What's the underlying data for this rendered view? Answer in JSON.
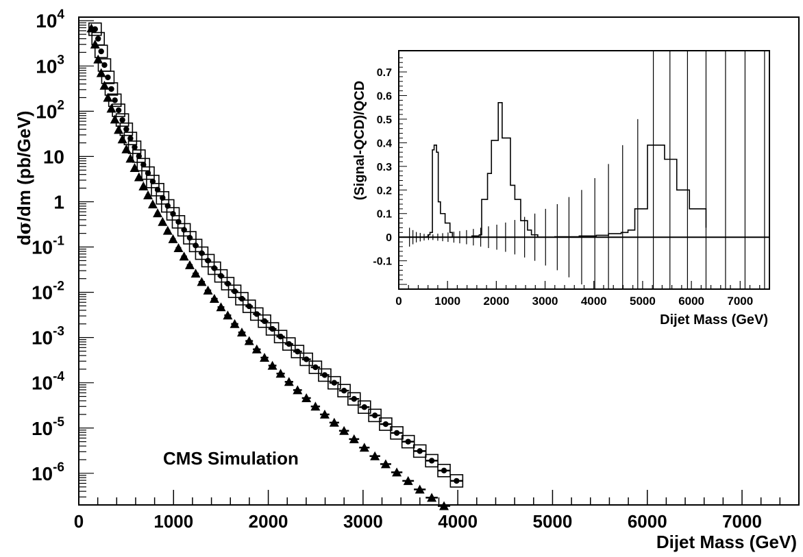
{
  "chart_data": [
    {
      "type": "scatter",
      "xlabel": "Dijet Mass (GeV)",
      "ylabel_prefix": "d",
      "ylabel_sigma": "σ",
      "ylabel_rest": "/dm (pb/GeV)",
      "xlim": [
        0,
        7600
      ],
      "ylim": [
        2e-07,
        12000.0
      ],
      "yscale": "log",
      "xticks": [
        0,
        1000,
        2000,
        3000,
        4000,
        5000,
        6000,
        7000
      ],
      "yticks": [
        {
          "base": "10",
          "exp": "4",
          "v": 10000.0
        },
        {
          "base": "10",
          "exp": "3",
          "v": 1000.0
        },
        {
          "base": "10",
          "exp": "2",
          "v": 100.0
        },
        {
          "base": "10",
          "exp": "",
          "v": 10
        },
        {
          "base": "1",
          "exp": "",
          "v": 1
        },
        {
          "base": "10",
          "exp": "-1",
          "v": 0.1
        },
        {
          "base": "10",
          "exp": "-2",
          "v": 0.01
        },
        {
          "base": "10",
          "exp": "-3",
          "v": 0.001
        },
        {
          "base": "10",
          "exp": "-4",
          "v": 0.0001
        },
        {
          "base": "10",
          "exp": "-5",
          "v": 1e-05
        },
        {
          "base": "10",
          "exp": "-6",
          "v": 1e-06
        }
      ],
      "annotation": "CMS Simulation",
      "bin_edges": [
        110,
        156,
        188,
        220,
        253,
        289,
        325,
        362,
        400,
        440,
        480,
        523,
        567,
        612,
        658,
        706,
        755,
        806,
        858,
        911,
        966,
        1023,
        1081,
        1141,
        1202,
        1265,
        1330,
        1397,
        1465,
        1536,
        1608,
        1683,
        1759,
        1838,
        1919,
        2001,
        2086,
        2174,
        2263,
        2355,
        2449,
        2546,
        2645,
        2747,
        2852,
        2959,
        3069,
        3181,
        3297,
        3415,
        3537,
        3661,
        3789,
        3920,
        4054,
        4192,
        4333,
        4478,
        4627,
        4779,
        4936,
        5096,
        5261,
        5430,
        5604,
        5782,
        5964,
        6152,
        6344,
        6542,
        6744,
        6953,
        7166,
        7386,
        7611
      ],
      "series": [
        {
          "marker": "triangle",
          "values": [
            6800,
            3000,
            1400,
            700,
            370,
            200,
            115,
            66,
            39,
            24,
            14.5,
            9,
            5.6,
            3.5,
            2.2,
            1.4,
            0.88,
            0.56,
            0.36,
            0.23,
            0.15,
            0.095,
            0.062,
            0.04,
            0.026,
            0.017,
            0.011,
            0.0072,
            0.0047,
            0.0031,
            0.002,
            0.0013,
            0.00084,
            0.00055,
            0.00036,
            0.00024,
            0.00016,
            0.000105,
            6.9e-05,
            4.6e-05,
            3e-05,
            2e-05,
            1.32e-05,
            8.7e-06,
            5.7e-06,
            3.7e-06,
            2.4e-06,
            1.6e-06,
            1.05e-06,
            6.8e-07,
            4.4e-07,
            2.9e-07,
            1.9e-07
          ]
        },
        {
          "marker": "circle",
          "values": [
            6500,
            4000,
            2100,
            1050,
            560,
            310,
            175,
            105,
            64,
            40,
            25,
            16,
            10.2,
            6.6,
            4.3,
            2.8,
            1.85,
            1.22,
            0.81,
            0.54,
            0.36,
            0.24,
            0.16,
            0.108,
            0.073,
            0.05,
            0.034,
            0.023,
            0.0155,
            0.0105,
            0.0072,
            0.0049,
            0.0033,
            0.0023,
            0.00155,
            0.00105,
            0.00072,
            0.00049,
            0.00033,
            0.00022,
            0.000148,
            0.0001,
            6.7e-05,
            4.4e-05,
            2.9e-05,
            1.9e-05,
            1.22e-05,
            7.8e-06,
            5e-06,
            3.1e-06,
            1.9e-06,
            1.15e-06,
            6.8e-07
          ]
        }
      ]
    },
    {
      "type": "line",
      "xlabel": "Dijet Mass (GeV)",
      "ylabel": "(Signal-QCD)/QCD",
      "xlim": [
        0,
        7600
      ],
      "ylim": [
        -0.22,
        0.79
      ],
      "xticks": [
        0,
        1000,
        2000,
        3000,
        4000,
        5000,
        6000,
        7000
      ],
      "yticks": [
        -0.1,
        0,
        0.1,
        0.2,
        0.3,
        0.4,
        0.5,
        0.6,
        0.7
      ],
      "ytick_labels": [
        "-0.1",
        "0",
        "0.1",
        "0.2",
        "0.3",
        "0.4",
        "0.5",
        "0.6",
        "0.7"
      ],
      "series": [
        {
          "name": "",
          "x": [
            0,
            565,
            600,
            640,
            690,
            725,
            775,
            810,
            855,
            950,
            1050,
            1100
          ],
          "y": [
            0,
            0.002,
            0.01,
            0.02,
            0.37,
            0.39,
            0.36,
            0.15,
            0.1,
            0.06,
            0.02,
            0.0
          ]
        },
        {
          "name": "",
          "x": [
            0,
            1500,
            1650,
            1700,
            1820,
            1900,
            2040,
            2120,
            2290,
            2380,
            2500,
            2640,
            2720,
            2850
          ],
          "y": [
            0,
            0.005,
            0.01,
            0.16,
            0.27,
            0.41,
            0.57,
            0.42,
            0.22,
            0.16,
            0.07,
            0.03,
            0.01,
            0.0
          ]
        },
        {
          "name": "",
          "x": [
            0,
            3200,
            3700,
            4050,
            4300,
            4560,
            4700,
            4840,
            5100,
            5450,
            5700,
            5960,
            6300
          ],
          "y": [
            0,
            0.002,
            0.005,
            0.008,
            0.015,
            0.02,
            0.03,
            0.12,
            0.39,
            0.33,
            0.2,
            0.12,
            0.04
          ]
        }
      ],
      "error_bars": {
        "x": [
          220,
          290,
          360,
          440,
          520,
          610,
          700,
          800,
          900,
          1010,
          1130,
          1250,
          1390,
          1530,
          1680,
          1840,
          2010,
          2190,
          2380,
          2580,
          2790,
          3010,
          3250,
          3490,
          3750,
          4020,
          4300,
          4590,
          4900,
          5220,
          5560,
          5920,
          6300,
          6700,
          7100,
          7500
        ],
        "err": [
          0.04,
          0.03,
          0.022,
          0.018,
          0.014,
          0.012,
          0.012,
          0.015,
          0.017,
          0.02,
          0.023,
          0.026,
          0.03,
          0.035,
          0.04,
          0.046,
          0.053,
          0.062,
          0.073,
          0.086,
          0.1,
          0.12,
          0.14,
          0.17,
          0.2,
          0.25,
          0.31,
          0.39,
          0.5,
          0.8,
          1.0,
          1.0,
          1.0,
          1.0,
          1.0,
          1.0
        ]
      }
    }
  ]
}
